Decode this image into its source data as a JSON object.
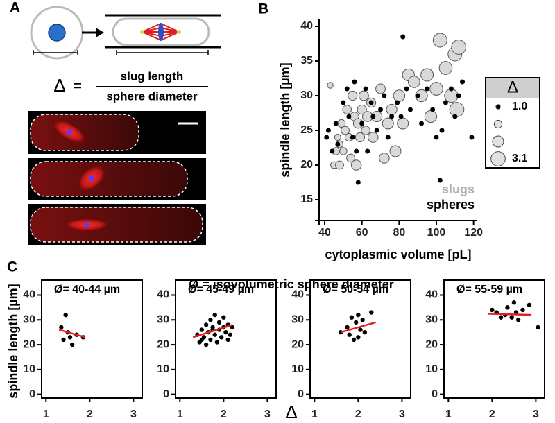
{
  "panel_labels": [
    "A",
    "B",
    "C"
  ],
  "formula": {
    "symbol": "Δ",
    "equals": "=",
    "numerator": "slug length",
    "denominator": "sphere diameter"
  },
  "panel_c": {
    "header": "Ø = isovolumetric sphere diameter",
    "y_label": "spindle length [µm]",
    "x_label": "Δ"
  },
  "chart_data": [
    {
      "type": "scatter",
      "x_label": "cytoplasmic volume [pL]",
      "y_label": "spindle length [µm]",
      "xlim": [
        37,
        122
      ],
      "xticks": [
        40,
        60,
        80,
        100,
        120
      ],
      "ylim": [
        12,
        41
      ],
      "yticks": [
        15,
        20,
        25,
        30,
        35,
        40
      ],
      "series": [
        {
          "name": "slugs",
          "color": "#d9d9d9",
          "x": [
            43,
            45,
            46,
            47,
            48,
            48,
            49,
            50,
            51,
            52,
            53,
            54,
            55,
            56,
            57,
            58,
            59,
            60,
            61,
            62,
            63,
            65,
            66,
            68,
            70,
            72,
            74,
            76,
            78,
            80,
            82,
            85,
            88,
            92,
            95,
            97,
            100,
            102,
            105,
            108,
            110,
            111,
            112
          ],
          "values": [
            31.5,
            20,
            22,
            24,
            20,
            23,
            26,
            22,
            25,
            28,
            24,
            21,
            30,
            27,
            20,
            26,
            24,
            28,
            30,
            25,
            27,
            29,
            24,
            27,
            31,
            21,
            26,
            28,
            22,
            30,
            26,
            33,
            32,
            30,
            33,
            27,
            31,
            38,
            34,
            30,
            36,
            28,
            37
          ],
          "sizes": [
            1.3,
            1.5,
            1.6,
            1.4,
            1.8,
            1.5,
            1.7,
            1.6,
            1.8,
            1.9,
            1.7,
            1.8,
            2.0,
            1.9,
            2.2,
            2.1,
            2.0,
            2.0,
            2.1,
            1.9,
            2.2,
            2.0,
            2.2,
            2.3,
            2.1,
            2.2,
            2.4,
            2.3,
            2.4,
            2.5,
            2.4,
            2.6,
            2.5,
            2.6,
            2.7,
            2.6,
            2.8,
            3.0,
            2.8,
            2.9,
            3.0,
            3.1,
            3.1
          ]
        },
        {
          "name": "spheres",
          "color": "#000000",
          "x": [
            41,
            42,
            44,
            46,
            47,
            50,
            52,
            53,
            55,
            56,
            57,
            58,
            60,
            62,
            63,
            65,
            66,
            68,
            70,
            72,
            74,
            76,
            79,
            81,
            82,
            84,
            86,
            90,
            92,
            95,
            98,
            100,
            102,
            103,
            105,
            108,
            110,
            112,
            114,
            119
          ],
          "values": [
            24,
            25,
            22,
            26,
            23,
            29,
            31,
            27,
            24,
            32,
            22,
            17.5,
            26,
            31,
            22,
            29,
            27,
            25,
            28,
            30,
            24,
            27,
            29,
            27,
            38.5,
            31,
            28,
            30,
            26,
            31,
            28,
            24,
            17.8,
            25,
            29,
            31,
            27,
            30,
            32,
            24
          ]
        }
      ],
      "size_legend": {
        "title": "Δ",
        "sizes": [
          1.0,
          1.7,
          2.4,
          3.1
        ],
        "labels": [
          "1.0",
          null,
          null,
          "3.1"
        ]
      }
    },
    {
      "type": "scatter",
      "title": "Ø= 40-44 µm",
      "xlim": [
        0.9,
        3.2
      ],
      "xticks": [
        1,
        2,
        3
      ],
      "ylim": [
        -1.5,
        46
      ],
      "yticks": [
        0,
        10,
        20,
        30,
        40
      ],
      "series": [
        {
          "color": "#000000",
          "x": [
            1.35,
            1.45,
            1.5,
            1.55,
            1.6,
            1.4,
            1.7,
            1.85
          ],
          "values": [
            27,
            32,
            25,
            23,
            20,
            22,
            24,
            23
          ]
        }
      ],
      "fit": {
        "color": "#e02020",
        "x": [
          1.3,
          1.9
        ],
        "values": [
          26,
          23
        ]
      }
    },
    {
      "type": "scatter",
      "title": "Ø= 45-49 µm",
      "xlim": [
        0.9,
        3.2
      ],
      "xticks": [
        1,
        2,
        3
      ],
      "ylim": [
        -1.5,
        46
      ],
      "yticks": [
        0,
        10,
        20,
        30,
        40
      ],
      "series": [
        {
          "color": "#000000",
          "x": [
            1.4,
            1.45,
            1.5,
            1.55,
            1.6,
            1.6,
            1.65,
            1.7,
            1.7,
            1.75,
            1.8,
            1.8,
            1.85,
            1.9,
            1.9,
            1.95,
            2.0,
            2.0,
            2.05,
            2.1,
            2.1,
            2.15,
            2.2,
            1.5,
            1.75
          ],
          "values": [
            24,
            21,
            26,
            23,
            20,
            28,
            25,
            22,
            30,
            27,
            24,
            32,
            21,
            26,
            29,
            23,
            27,
            31,
            25,
            22,
            28,
            24,
            27,
            22,
            26
          ]
        }
      ],
      "fit": {
        "color": "#e02020",
        "x": [
          1.3,
          2.2
        ],
        "values": [
          23,
          28
        ]
      }
    },
    {
      "type": "scatter",
      "title": "Ø= 50-54 µm",
      "xlim": [
        0.9,
        3.2
      ],
      "xticks": [
        1,
        2,
        3
      ],
      "ylim": [
        -1.5,
        46
      ],
      "yticks": [
        0,
        10,
        20,
        30,
        40
      ],
      "series": [
        {
          "color": "#000000",
          "x": [
            1.6,
            1.75,
            1.8,
            1.85,
            1.9,
            1.95,
            2.0,
            2.0,
            2.05,
            2.1,
            2.15,
            2.3
          ],
          "values": [
            25,
            27,
            24,
            31,
            22,
            29,
            23,
            32,
            26,
            30,
            25,
            33
          ]
        }
      ],
      "fit": {
        "color": "#e02020",
        "x": [
          1.6,
          2.4
        ],
        "values": [
          25,
          29
        ]
      }
    },
    {
      "type": "scatter",
      "title": "Ø= 55-59 µm",
      "xlim": [
        0.9,
        3.2
      ],
      "xticks": [
        1,
        2,
        3
      ],
      "ylim": [
        -1.5,
        46
      ],
      "yticks": [
        0,
        10,
        20,
        30,
        40
      ],
      "series": [
        {
          "color": "#000000",
          "x": [
            2.0,
            2.1,
            2.2,
            2.3,
            2.35,
            2.45,
            2.5,
            2.55,
            2.6,
            2.7,
            2.85,
            3.05
          ],
          "values": [
            34,
            33,
            31,
            32,
            35,
            31,
            37,
            33,
            30,
            34,
            36,
            27
          ]
        }
      ],
      "fit": {
        "color": "#e02020",
        "x": [
          1.9,
          2.9
        ],
        "values": [
          32.5,
          32
        ]
      }
    }
  ]
}
